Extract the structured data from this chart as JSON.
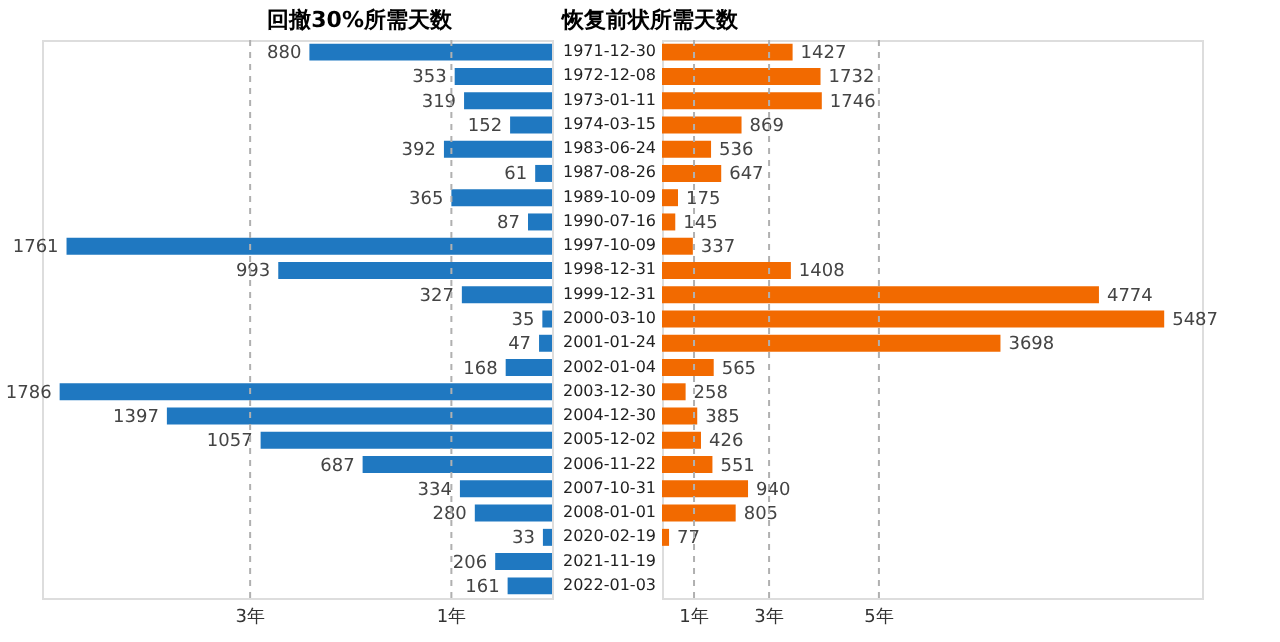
{
  "chart_data": [
    {
      "type": "bar",
      "orientation": "horizontal",
      "title": "回撤30%所需天数",
      "categories": [
        "1971-12-30",
        "1972-12-08",
        "1973-01-11",
        "1974-03-15",
        "1983-06-24",
        "1987-08-26",
        "1989-10-09",
        "1990-07-16",
        "1997-10-09",
        "1998-12-31",
        "1999-12-31",
        "2000-03-10",
        "2001-01-24",
        "2002-01-04",
        "2003-12-30",
        "2004-12-30",
        "2005-12-02",
        "2006-11-22",
        "2007-10-31",
        "2008-01-01",
        "2020-02-19",
        "2021-11-19",
        "2022-01-03"
      ],
      "series": [
        {
          "color": "#1f78c1",
          "values": [
            880,
            353,
            319,
            152,
            392,
            61,
            365,
            87,
            1761,
            993,
            327,
            35,
            47,
            168,
            1786,
            1397,
            1057,
            687,
            334,
            280,
            33,
            206,
            161
          ]
        }
      ],
      "xlim": [
        1850,
        0
      ],
      "data_labels": true,
      "tick_labels": false,
      "ref_lines": [
        {
          "axis": "x",
          "value": 1095,
          "label": "3年",
          "line_style": "dashed",
          "color": "#b0b0b0"
        },
        {
          "axis": "x",
          "value": 365,
          "label": "1年",
          "line_style": "dashed",
          "color": "#b0b0b0"
        }
      ]
    },
    {
      "type": "bar",
      "orientation": "horizontal",
      "title": "恢复前状所需天数",
      "categories": [
        "1971-12-30",
        "1972-12-08",
        "1973-01-11",
        "1974-03-15",
        "1983-06-24",
        "1987-08-26",
        "1989-10-09",
        "1990-07-16",
        "1997-10-09",
        "1998-12-31",
        "1999-12-31",
        "2000-03-10",
        "2001-01-24",
        "2002-01-04",
        "2003-12-30",
        "2004-12-30",
        "2005-12-02",
        "2006-11-22",
        "2007-10-31",
        "2008-01-01",
        "2020-02-19",
        "2021-11-19",
        "2022-01-03"
      ],
      "series": [
        {
          "color": "#f26a00",
          "values": [
            1427,
            1732,
            1746,
            869,
            536,
            647,
            175,
            145,
            337,
            1408,
            4774,
            5487,
            3698,
            565,
            258,
            385,
            426,
            551,
            940,
            805,
            77,
            null,
            null
          ]
        }
      ],
      "xlim": [
        0,
        5900
      ],
      "data_labels": true,
      "tick_labels": "y",
      "ref_lines": [
        {
          "axis": "x",
          "value": 350,
          "label": "1年",
          "line_style": "dashed",
          "color": "#b0b0b0"
        },
        {
          "axis": "x",
          "value": 1170,
          "label": "3年",
          "line_style": "dashed",
          "color": "#b0b0b0"
        },
        {
          "axis": "x",
          "value": 2370,
          "label": "5年",
          "line_style": "dashed",
          "color": "#b0b0b0"
        }
      ]
    }
  ]
}
